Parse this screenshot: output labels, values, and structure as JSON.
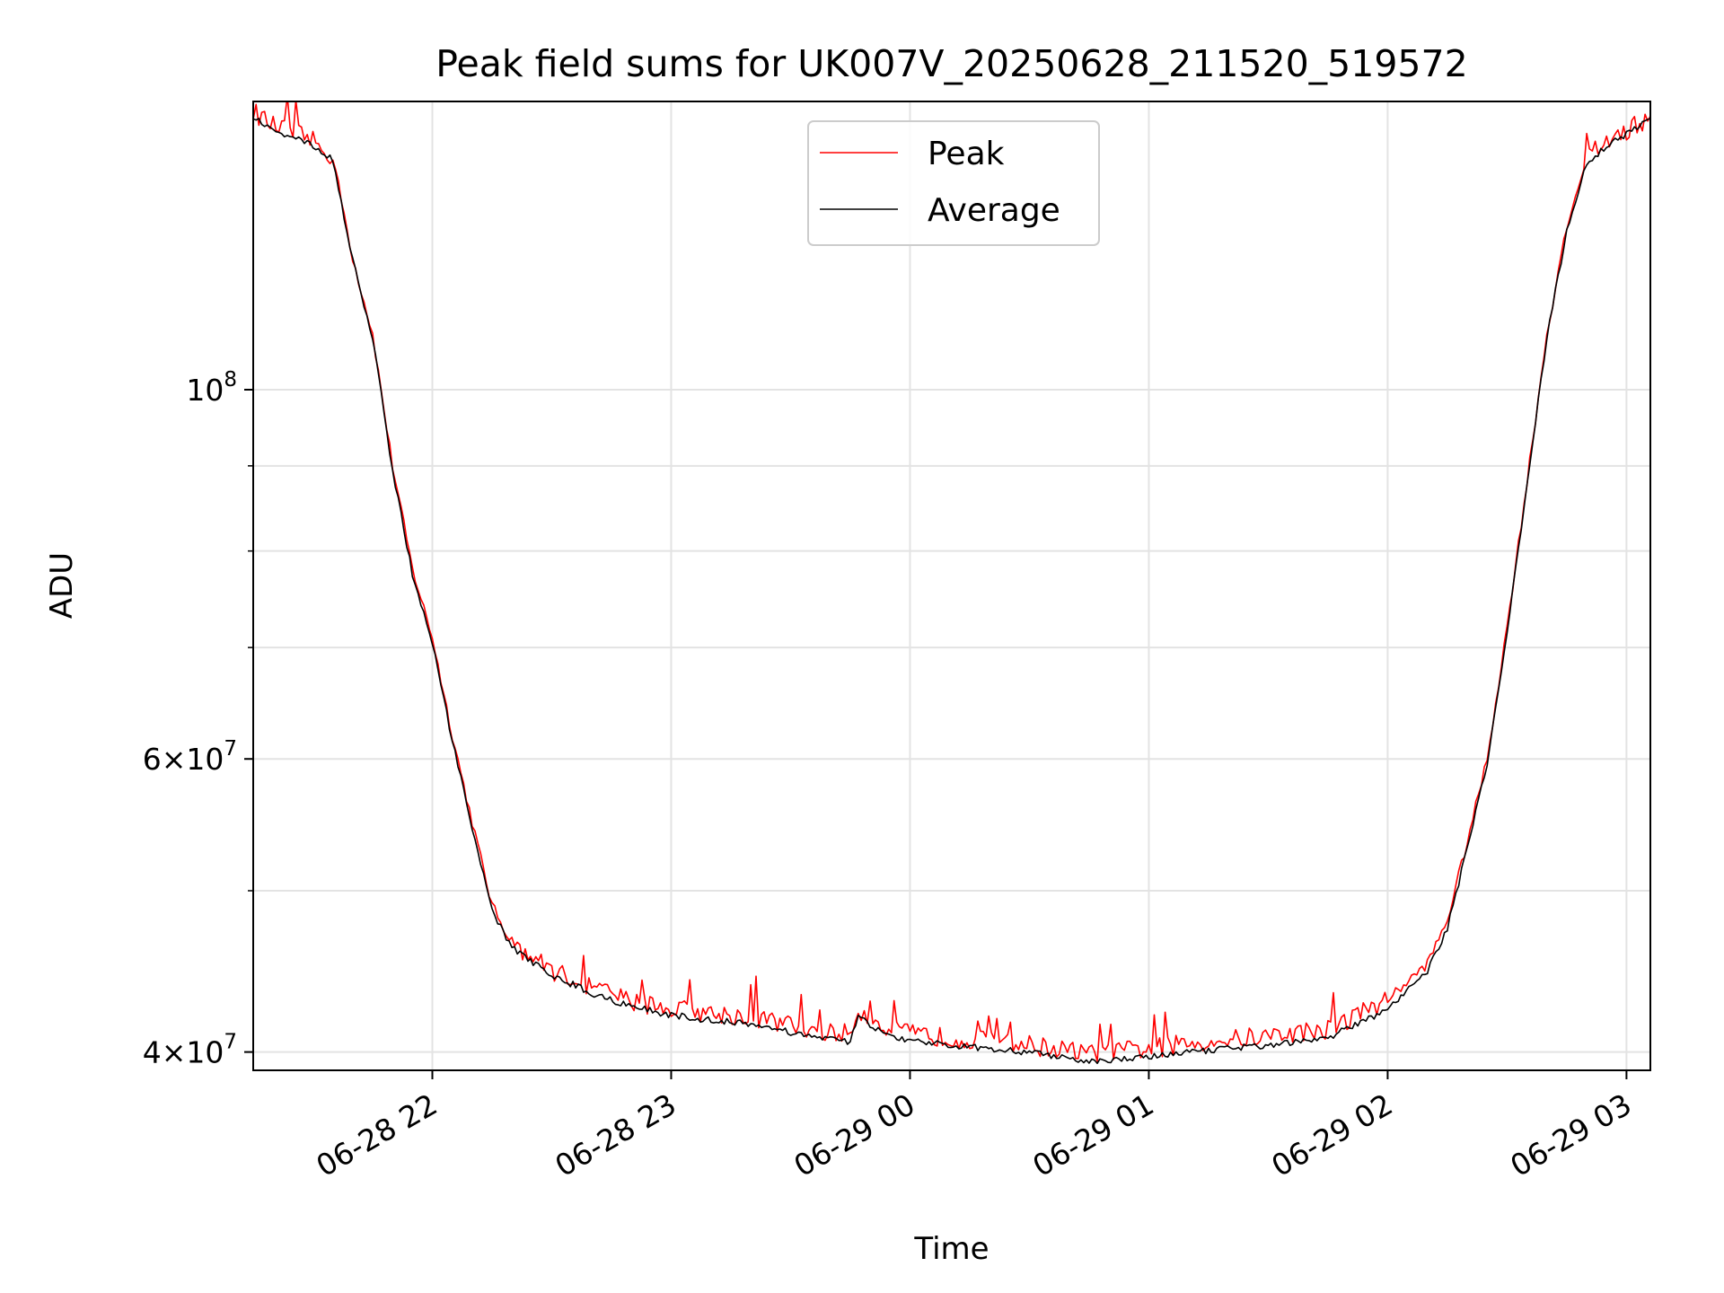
{
  "chart_data": {
    "type": "line",
    "title": "Peak field sums for UK007V_20250628_211520_519572",
    "xlabel": "Time",
    "ylabel": "ADU",
    "yscale": "log",
    "ylim": [
      39000000,
      149000000
    ],
    "xlim": [
      "2025-06-28 21:15",
      "2025-06-29 03:06"
    ],
    "grid": true,
    "legend_position": "top-center",
    "x_ticks": [
      {
        "t": "2025-06-28 22:00",
        "label": "06-28 22"
      },
      {
        "t": "2025-06-28 23:00",
        "label": "06-28 23"
      },
      {
        "t": "2025-06-29 00:00",
        "label": "06-29 00"
      },
      {
        "t": "2025-06-29 01:00",
        "label": "06-29 01"
      },
      {
        "t": "2025-06-29 02:00",
        "label": "06-29 02"
      },
      {
        "t": "2025-06-29 03:00",
        "label": "06-29 03"
      }
    ],
    "y_major_ticks": [
      {
        "value": 40000000,
        "base": "4",
        "exp": "7"
      },
      {
        "value": 60000000,
        "base": "6",
        "exp": "7"
      },
      {
        "value": 100000000,
        "base": "",
        "exp": "8"
      }
    ],
    "y_minor_ticks": [
      50000000,
      70000000,
      80000000,
      90000000
    ],
    "series": [
      {
        "name": "Peak",
        "color": "#ff0000",
        "points": [
          [
            "2025-06-28 21:15",
            147000000
          ],
          [
            "2025-06-28 21:20",
            144000000
          ],
          [
            "2025-06-28 21:25",
            143000000
          ],
          [
            "2025-06-28 21:30",
            141000000
          ],
          [
            "2025-06-28 21:35",
            138000000
          ],
          [
            "2025-06-28 21:40",
            120000000
          ],
          [
            "2025-06-28 21:45",
            108000000
          ],
          [
            "2025-06-28 21:50",
            90000000
          ],
          [
            "2025-06-28 21:55",
            78000000
          ],
          [
            "2025-06-28 22:00",
            71000000
          ],
          [
            "2025-06-28 22:05",
            62000000
          ],
          [
            "2025-06-28 22:10",
            55000000
          ],
          [
            "2025-06-28 22:15",
            49000000
          ],
          [
            "2025-06-28 22:20",
            46500000
          ],
          [
            "2025-06-28 22:30",
            44800000
          ],
          [
            "2025-06-28 22:40",
            43800000
          ],
          [
            "2025-06-28 22:50",
            42900000
          ],
          [
            "2025-06-28 23:00",
            42500000
          ],
          [
            "2025-06-28 23:10",
            42200000
          ],
          [
            "2025-06-28 23:20",
            42000000
          ],
          [
            "2025-06-28 23:30",
            41500000
          ],
          [
            "2025-06-28 23:40",
            41100000
          ],
          [
            "2025-06-28 23:45",
            41000000
          ],
          [
            "2025-06-28 23:47",
            42500000
          ],
          [
            "2025-06-28 23:50",
            41800000
          ],
          [
            "2025-06-29 00:00",
            41000000
          ],
          [
            "2025-06-29 00:15",
            40700000
          ],
          [
            "2025-06-29 00:30",
            40400000
          ],
          [
            "2025-06-29 00:45",
            39900000
          ],
          [
            "2025-06-29 01:00",
            40200000
          ],
          [
            "2025-06-29 01:15",
            40600000
          ],
          [
            "2025-06-29 01:30",
            40900000
          ],
          [
            "2025-06-29 01:45",
            41300000
          ],
          [
            "2025-06-29 02:00",
            43000000
          ],
          [
            "2025-06-29 02:10",
            45200000
          ],
          [
            "2025-06-29 02:15",
            48000000
          ],
          [
            "2025-06-29 02:20",
            53500000
          ],
          [
            "2025-06-29 02:25",
            60000000
          ],
          [
            "2025-06-29 02:30",
            72000000
          ],
          [
            "2025-06-29 02:35",
            88000000
          ],
          [
            "2025-06-29 02:40",
            108000000
          ],
          [
            "2025-06-29 02:45",
            125000000
          ],
          [
            "2025-06-29 02:50",
            138000000
          ],
          [
            "2025-06-29 02:55",
            141000000
          ],
          [
            "2025-06-29 03:00",
            143000000
          ],
          [
            "2025-06-29 03:06",
            146000000
          ]
        ]
      },
      {
        "name": "Average",
        "color": "#000000",
        "points": [
          [
            "2025-06-28 21:15",
            146000000
          ],
          [
            "2025-06-28 21:20",
            143000000
          ],
          [
            "2025-06-28 21:25",
            142000000
          ],
          [
            "2025-06-28 21:30",
            140000000
          ],
          [
            "2025-06-28 21:35",
            137500000
          ],
          [
            "2025-06-28 21:40",
            119500000
          ],
          [
            "2025-06-28 21:45",
            107500000
          ],
          [
            "2025-06-28 21:50",
            89500000
          ],
          [
            "2025-06-28 21:55",
            77500000
          ],
          [
            "2025-06-28 22:00",
            70500000
          ],
          [
            "2025-06-28 22:05",
            61500000
          ],
          [
            "2025-06-28 22:10",
            54500000
          ],
          [
            "2025-06-28 22:15",
            48600000
          ],
          [
            "2025-06-28 22:20",
            46200000
          ],
          [
            "2025-06-28 22:30",
            44500000
          ],
          [
            "2025-06-28 22:40",
            43400000
          ],
          [
            "2025-06-28 22:50",
            42600000
          ],
          [
            "2025-06-28 23:00",
            42100000
          ],
          [
            "2025-06-28 23:10",
            41800000
          ],
          [
            "2025-06-28 23:20",
            41600000
          ],
          [
            "2025-06-28 23:30",
            41100000
          ],
          [
            "2025-06-28 23:40",
            40700000
          ],
          [
            "2025-06-28 23:45",
            40600000
          ],
          [
            "2025-06-28 23:47",
            42100000
          ],
          [
            "2025-06-28 23:50",
            41400000
          ],
          [
            "2025-06-29 00:00",
            40600000
          ],
          [
            "2025-06-29 00:15",
            40300000
          ],
          [
            "2025-06-29 00:30",
            40000000
          ],
          [
            "2025-06-29 00:45",
            39500000
          ],
          [
            "2025-06-29 01:00",
            39700000
          ],
          [
            "2025-06-29 01:15",
            40100000
          ],
          [
            "2025-06-29 01:30",
            40400000
          ],
          [
            "2025-06-29 01:45",
            40800000
          ],
          [
            "2025-06-29 02:00",
            42400000
          ],
          [
            "2025-06-29 02:10",
            44700000
          ],
          [
            "2025-06-29 02:15",
            47500000
          ],
          [
            "2025-06-29 02:20",
            53000000
          ],
          [
            "2025-06-29 02:25",
            59500000
          ],
          [
            "2025-06-29 02:30",
            71500000
          ],
          [
            "2025-06-29 02:35",
            87500000
          ],
          [
            "2025-06-29 02:40",
            107500000
          ],
          [
            "2025-06-29 02:45",
            124500000
          ],
          [
            "2025-06-29 02:50",
            137000000
          ],
          [
            "2025-06-29 02:55",
            140000000
          ],
          [
            "2025-06-29 03:00",
            142500000
          ],
          [
            "2025-06-29 03:06",
            145500000
          ]
        ]
      }
    ]
  }
}
